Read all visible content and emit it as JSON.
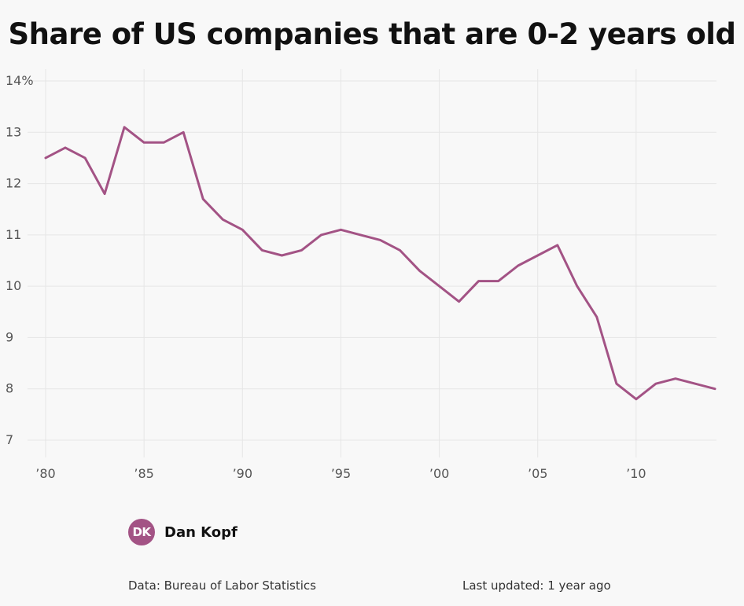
{
  "chart_data": {
    "type": "line",
    "title": "Share of US companies that are 0-2 years old",
    "xlabel": "",
    "ylabel": "",
    "xlim": [
      1980,
      2014
    ],
    "ylim": [
      7,
      14
    ],
    "x_ticks": [
      1980,
      1985,
      1990,
      1995,
      2000,
      2005,
      2010
    ],
    "x_tick_labels": [
      "’80",
      "’85",
      "’90",
      "’95",
      "’00",
      "’05",
      "’10"
    ],
    "y_ticks": [
      7,
      8,
      9,
      10,
      11,
      12,
      13,
      14
    ],
    "y_tick_labels": [
      "7",
      "8",
      "9",
      "10",
      "11",
      "12",
      "13",
      "14%"
    ],
    "grid": true,
    "line_color": "#a35385",
    "series": [
      {
        "x": [
          1980,
          1981,
          1982,
          1983,
          1984,
          1985,
          1986,
          1987,
          1988,
          1989,
          1990,
          1991,
          1992,
          1993,
          1994,
          1995,
          1996,
          1997,
          1998,
          1999,
          2000,
          2001,
          2002,
          2003,
          2004,
          2005,
          2006,
          2007,
          2008,
          2009,
          2010,
          2011,
          2012,
          2013,
          2014
        ],
        "values": [
          12.5,
          12.7,
          12.5,
          11.8,
          13.1,
          12.8,
          12.8,
          13.0,
          11.7,
          11.3,
          11.1,
          10.7,
          10.6,
          10.7,
          11.0,
          11.1,
          11.0,
          10.9,
          10.7,
          10.3,
          10.0,
          9.7,
          10.1,
          10.1,
          10.4,
          10.6,
          10.8,
          10.0,
          9.4,
          8.1,
          7.8,
          8.1,
          8.2,
          8.1,
          8.0
        ]
      }
    ]
  },
  "author": {
    "initials": "DK",
    "name": "Dan Kopf",
    "avatar_color": "#a35385"
  },
  "footer": {
    "source": "Data: Bureau of Labor Statistics",
    "updated": "Last updated: 1 year ago"
  }
}
